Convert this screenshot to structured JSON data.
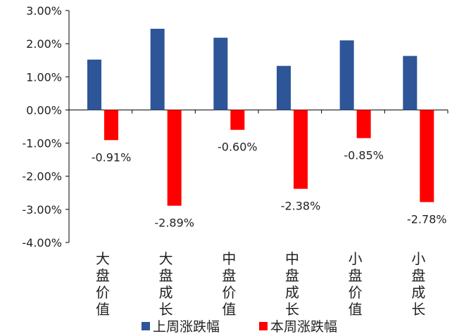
{
  "chart_data": {
    "type": "bar",
    "categories": [
      "大盘价值",
      "大盘成长",
      "中盘价值",
      "中盘成长",
      "小盘价值",
      "小盘成长"
    ],
    "series": [
      {
        "name": "上周涨跌幅",
        "color": "#2E5597",
        "values": [
          1.52,
          2.45,
          2.18,
          1.33,
          2.1,
          1.63
        ]
      },
      {
        "name": "本周涨跌幅",
        "color": "#FF0000",
        "values": [
          -0.91,
          -2.89,
          -0.6,
          -2.38,
          -0.85,
          -2.78
        ],
        "data_labels": [
          "-0.91%",
          "-2.89%",
          "-0.60%",
          "-2.38%",
          "-0.85%",
          "-2.78%"
        ]
      }
    ],
    "y_ticks": [
      "3.00%",
      "2.00%",
      "1.00%",
      "0.00%",
      "-1.00%",
      "-2.00%",
      "-3.00%",
      "-4.00%"
    ],
    "ylim": [
      -4,
      3
    ],
    "y_unit": "%",
    "grid": false,
    "legend_position": "bottom"
  }
}
